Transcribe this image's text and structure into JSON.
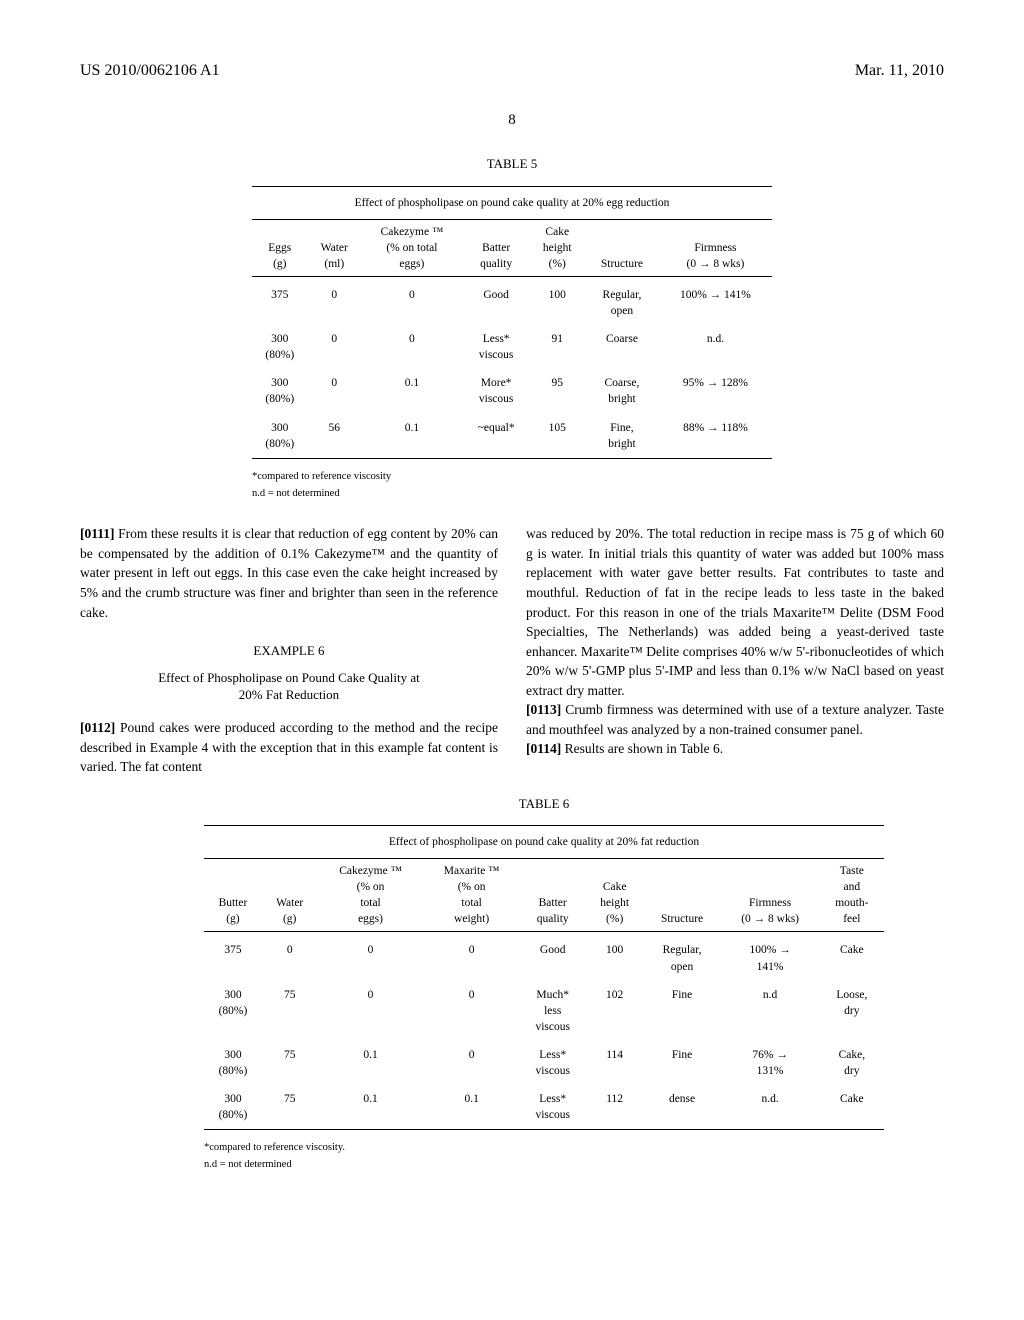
{
  "header": {
    "doc_number": "US 2010/0062106 A1",
    "date": "Mar. 11, 2010"
  },
  "page_number": "8",
  "table5": {
    "label": "TABLE 5",
    "caption": "Effect of phospholipase on pound cake quality at 20% egg reduction",
    "columns": {
      "c1a": "Eggs",
      "c1b": "(g)",
      "c2a": "Water",
      "c2b": "(ml)",
      "c3a": "Cakezyme ™",
      "c3b": "(% on total",
      "c3c": "eggs)",
      "c4a": "Batter",
      "c4b": "quality",
      "c5a": "Cake",
      "c5b": "height",
      "c5c": "(%)",
      "c6": "Structure",
      "c7a": "Firmness",
      "c7b": "(0 → 8 wks)"
    },
    "rows": [
      {
        "eggs": "375",
        "water": "0",
        "cz": "0",
        "bq": "Good",
        "ch": "100",
        "st": "Regular,\nopen",
        "fm": "100% → 141%"
      },
      {
        "eggs": "300\n(80%)",
        "water": "0",
        "cz": "0",
        "bq": "Less*\nviscous",
        "ch": "91",
        "st": "Coarse",
        "fm": "n.d."
      },
      {
        "eggs": "300\n(80%)",
        "water": "0",
        "cz": "0.1",
        "bq": "More*\nviscous",
        "ch": "95",
        "st": "Coarse,\nbright",
        "fm": "95% → 128%"
      },
      {
        "eggs": "300\n(80%)",
        "water": "56",
        "cz": "0.1",
        "bq": "~equal*",
        "ch": "105",
        "st": "Fine,\nbright",
        "fm": "88% → 118%"
      }
    ],
    "footnotes": [
      "*compared to reference viscosity",
      "n.d = not determined"
    ]
  },
  "para0111": {
    "num": "[0111]",
    "text": "    From these results it is clear that reduction of egg content by 20% can be compensated by the addition of 0.1% Cakezyme™ and the quantity of water present in left out eggs. In this case even the cake height increased by 5% and the crumb structure was finer and brighter than seen in the reference cake."
  },
  "example6": {
    "head": "EXAMPLE 6",
    "title1": "Effect of Phospholipase on Pound Cake Quality at",
    "title2": "20% Fat Reduction"
  },
  "para0112": {
    "num": "[0112]",
    "text": "    Pound cakes were produced according to the method and the recipe described in Example 4 with the exception that in this example fat content is varied. The fat content"
  },
  "para0112b": {
    "text": "was reduced by 20%. The total reduction in recipe mass is 75 g of which 60 g is water. In initial trials this quantity of water was added but 100% mass replacement with water gave better results. Fat contributes to taste and mouthful. Reduction of fat in the recipe leads to less taste in the baked product. For this reason in one of the trials Maxarite™ Delite (DSM Food Specialties, The Netherlands) was added being a yeast-derived taste enhancer. Maxarite™ Delite comprises 40% w/w 5'-ribonucleotides of which 20% w/w 5'-GMP plus 5'-IMP and less than 0.1% w/w NaCl based on yeast extract dry matter."
  },
  "para0113": {
    "num": "[0113]",
    "text": "    Crumb firmness was determined with use of a texture analyzer. Taste and mouthfeel was analyzed by a non-trained consumer panel."
  },
  "para0114": {
    "num": "[0114]",
    "text": "    Results are shown in Table 6."
  },
  "table6": {
    "label": "TABLE 6",
    "caption": "Effect of phospholipase on pound cake quality at 20% fat reduction",
    "columns": {
      "c1a": "Butter",
      "c1b": "(g)",
      "c2a": "Water",
      "c2b": "(g)",
      "c3a": "Cakezyme ™",
      "c3b": "(% on",
      "c3c": "total",
      "c3d": "eggs)",
      "c4a": "Maxarite ™",
      "c4b": "(% on",
      "c4c": "total",
      "c4d": "weight)",
      "c5a": "Batter",
      "c5b": "quality",
      "c6a": "Cake",
      "c6b": "height",
      "c6c": "(%)",
      "c7": "Structure",
      "c8a": "Firmness",
      "c8b": "(0 → 8 wks)",
      "c9a": "Taste",
      "c9b": "and",
      "c9c": "mouth-",
      "c9d": "feel"
    },
    "rows": [
      {
        "b": "375",
        "w": "0",
        "cz": "0",
        "mx": "0",
        "bq": "Good",
        "ch": "100",
        "st": "Regular,\nopen",
        "fm": "100% →\n141%",
        "tm": "Cake"
      },
      {
        "b": "300\n(80%)",
        "w": "75",
        "cz": "0",
        "mx": "0",
        "bq": "Much*\nless\nviscous",
        "ch": "102",
        "st": "Fine",
        "fm": "n.d",
        "tm": "Loose,\ndry"
      },
      {
        "b": "300\n(80%)",
        "w": "75",
        "cz": "0.1",
        "mx": "0",
        "bq": "Less*\nviscous",
        "ch": "114",
        "st": "Fine",
        "fm": "76% →\n131%",
        "tm": "Cake,\ndry"
      },
      {
        "b": "300\n(80%)",
        "w": "75",
        "cz": "0.1",
        "mx": "0.1",
        "bq": "Less*\nviscous",
        "ch": "112",
        "st": "dense",
        "fm": "n.d.",
        "tm": "Cake"
      }
    ],
    "footnotes": [
      "*compared to reference viscosity.",
      "n.d = not determined"
    ]
  }
}
